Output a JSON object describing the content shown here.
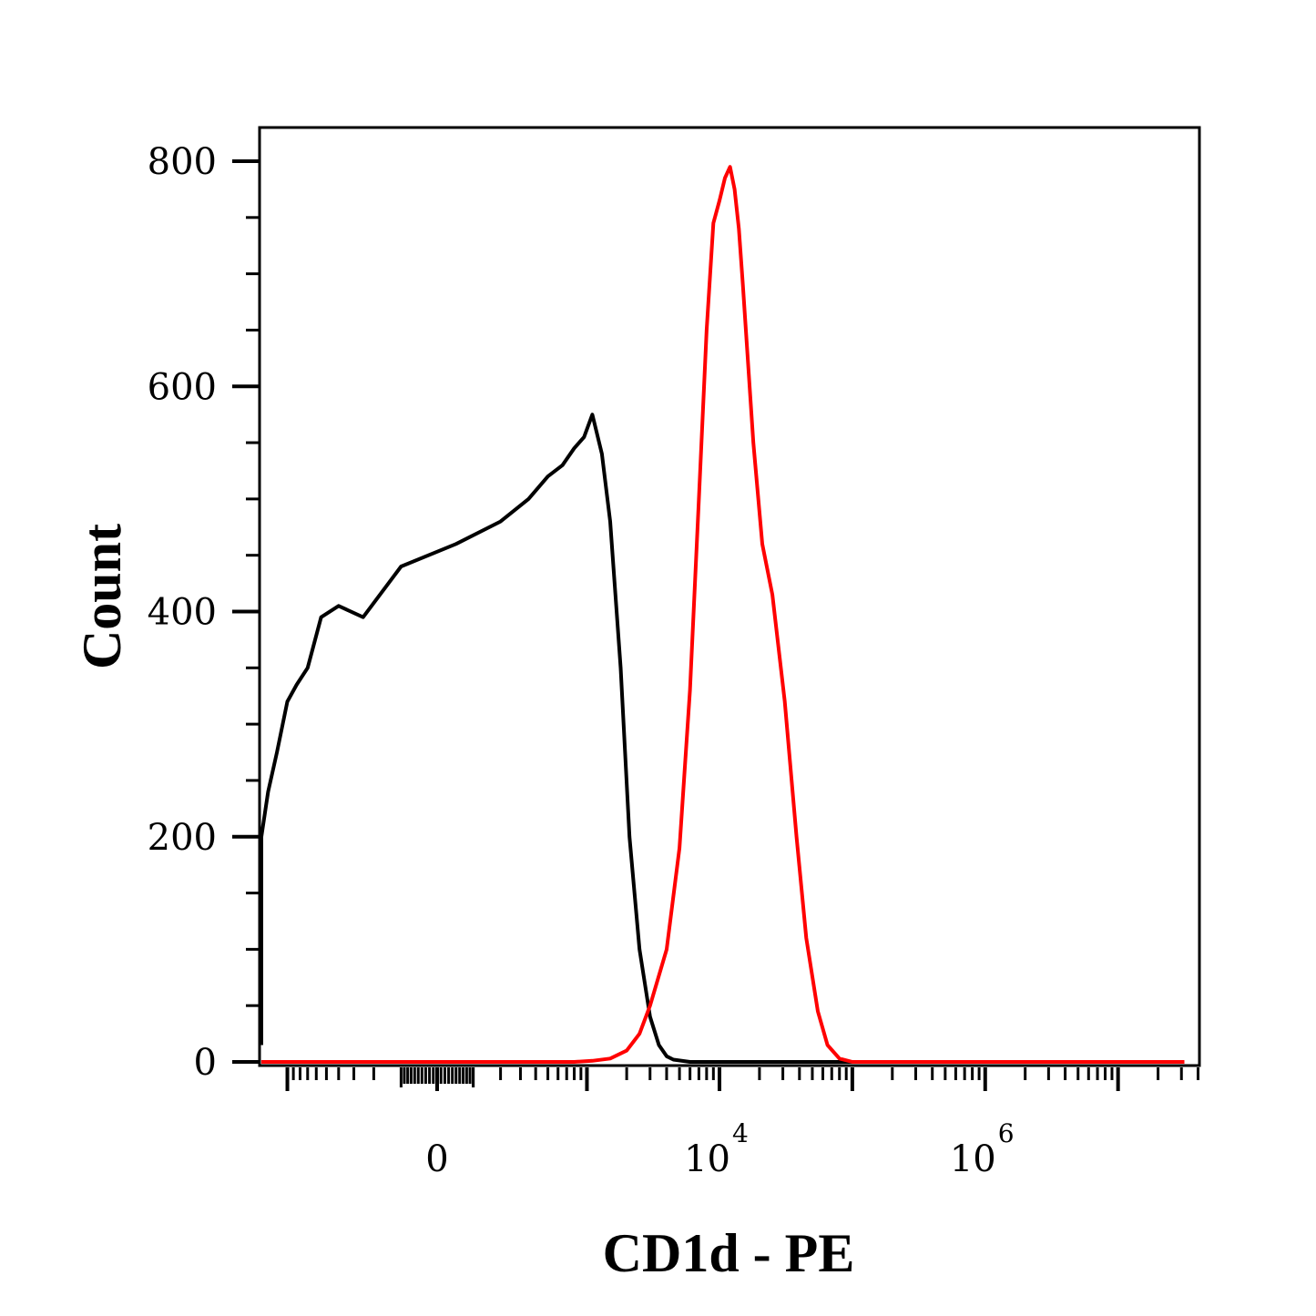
{
  "chart_data": {
    "type": "histogram",
    "xlabel": "CD1d - PE",
    "ylabel": "Count",
    "x_scale": "biexponential",
    "ylim": [
      0,
      830
    ],
    "y_ticks": [
      {
        "value": 0,
        "label": "0"
      },
      {
        "value": 200,
        "label": "200"
      },
      {
        "value": 400,
        "label": "400"
      },
      {
        "value": 600,
        "label": "600"
      },
      {
        "value": 800,
        "label": "800"
      }
    ],
    "x_ticks": [
      {
        "value": 0,
        "base": "0",
        "exp": ""
      },
      {
        "value": 10000,
        "base": "10",
        "exp": "4"
      },
      {
        "value": 1000000,
        "base": "10",
        "exp": "6"
      }
    ],
    "grid": false,
    "legend": "none",
    "series": [
      {
        "color": "#000000",
        "points": [
          [
            -2600,
            15
          ],
          [
            -2400,
            25
          ],
          [
            -2200,
            50
          ],
          [
            -2000,
            95
          ],
          [
            -1800,
            150
          ],
          [
            -1600,
            200
          ],
          [
            -1400,
            240
          ],
          [
            -1200,
            275
          ],
          [
            -1000,
            320
          ],
          [
            -850,
            335
          ],
          [
            -700,
            350
          ],
          [
            -550,
            395
          ],
          [
            -400,
            405
          ],
          [
            -250,
            395
          ],
          [
            -100,
            440
          ],
          [
            50,
            460
          ],
          [
            200,
            480
          ],
          [
            350,
            500
          ],
          [
            500,
            520
          ],
          [
            650,
            530
          ],
          [
            800,
            545
          ],
          [
            950,
            555
          ],
          [
            1100,
            575
          ],
          [
            1300,
            540
          ],
          [
            1500,
            480
          ],
          [
            1800,
            350
          ],
          [
            2100,
            200
          ],
          [
            2500,
            100
          ],
          [
            3000,
            40
          ],
          [
            3500,
            15
          ],
          [
            4000,
            5
          ],
          [
            4500,
            2
          ],
          [
            6000,
            0
          ],
          [
            10000,
            0
          ],
          [
            100000,
            0
          ],
          [
            10000000,
            0
          ],
          [
            31600000,
            0
          ]
        ]
      },
      {
        "color": "#ff0000",
        "points": [
          [
            -2800,
            0
          ],
          [
            -2000,
            0
          ],
          [
            -1000,
            0
          ],
          [
            0,
            0
          ],
          [
            800,
            0
          ],
          [
            1100,
            1
          ],
          [
            1500,
            3
          ],
          [
            2000,
            10
          ],
          [
            2500,
            25
          ],
          [
            3000,
            50
          ],
          [
            4000,
            100
          ],
          [
            5000,
            190
          ],
          [
            6000,
            330
          ],
          [
            7000,
            500
          ],
          [
            8000,
            650
          ],
          [
            9000,
            745
          ],
          [
            10000,
            765
          ],
          [
            11000,
            785
          ],
          [
            12000,
            795
          ],
          [
            13000,
            775
          ],
          [
            14000,
            740
          ],
          [
            15000,
            690
          ],
          [
            18000,
            550
          ],
          [
            21000,
            460
          ],
          [
            25000,
            415
          ],
          [
            31000,
            320
          ],
          [
            38000,
            200
          ],
          [
            45000,
            110
          ],
          [
            55000,
            45
          ],
          [
            65000,
            15
          ],
          [
            80000,
            3
          ],
          [
            100000,
            0
          ],
          [
            1000000,
            0
          ],
          [
            10000000,
            0
          ],
          [
            31600000,
            0
          ]
        ]
      }
    ]
  }
}
